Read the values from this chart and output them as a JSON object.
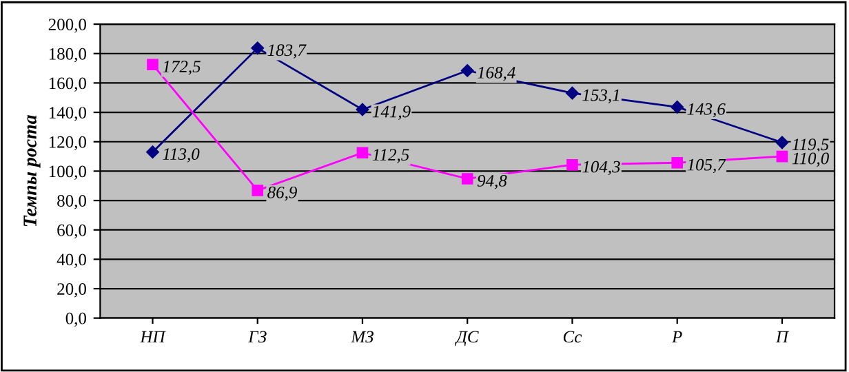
{
  "chart_data": {
    "type": "line",
    "ylabel": "Темпы роста",
    "categories": [
      "НП",
      "ГЗ",
      "МЗ",
      "ДС",
      "Сс",
      "Р",
      "П"
    ],
    "series": [
      {
        "color": "#000080",
        "marker": "diamond",
        "values": [
          113.0,
          183.7,
          141.9,
          168.4,
          153.1,
          143.6,
          119.5
        ],
        "value_labels": [
          "113,0",
          "183,7",
          "141,9",
          "168,4",
          "153,1",
          "143,6",
          "119,5"
        ]
      },
      {
        "color": "#ff00ff",
        "marker": "square",
        "values": [
          172.5,
          86.9,
          112.5,
          94.8,
          104.3,
          105.7,
          110.0
        ],
        "value_labels": [
          "172,5",
          "86,9",
          "112,5",
          "94,8",
          "104,3",
          "105,7",
          "110,0"
        ]
      }
    ],
    "ylim": [
      0,
      200
    ],
    "yticks": [
      {
        "value": 0,
        "label": "0,0"
      },
      {
        "value": 20,
        "label": "20,0"
      },
      {
        "value": 40,
        "label": "40,0"
      },
      {
        "value": 60,
        "label": "60,0"
      },
      {
        "value": 80,
        "label": "80,0"
      },
      {
        "value": 100,
        "label": "100,0"
      },
      {
        "value": 120,
        "label": "120,0"
      },
      {
        "value": 140,
        "label": "140,0"
      },
      {
        "value": 160,
        "label": "160,0"
      },
      {
        "value": 180,
        "label": "180,0"
      },
      {
        "value": 200,
        "label": "200,0"
      }
    ],
    "grid": "y",
    "legend": false,
    "line_style": "solid"
  }
}
